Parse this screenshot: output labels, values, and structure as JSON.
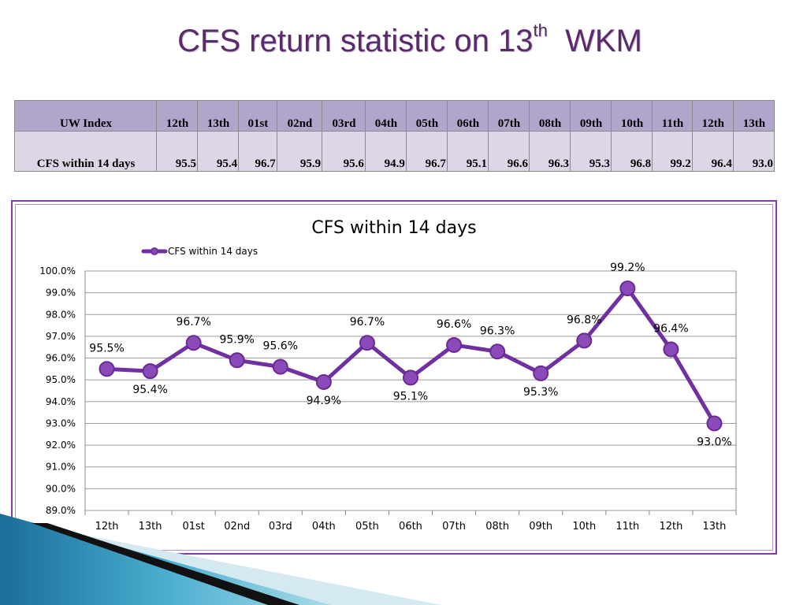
{
  "slide": {
    "title_main": "CFS return statistic on 13",
    "title_sup": "th",
    "title_end": "WKM"
  },
  "table": {
    "header_label": "UW Index",
    "columns": [
      "12th",
      "13th",
      "01st",
      "02nd",
      "03rd",
      "04th",
      "05th",
      "06th",
      "07th",
      "08th",
      "09th",
      "10th",
      "11th",
      "12th",
      "13th"
    ],
    "row_label": "CFS within 14 days",
    "values": [
      "95.5",
      "95.4",
      "96.7",
      "95.9",
      "95.6",
      "94.9",
      "96.7",
      "95.1",
      "96.6",
      "96.3",
      "95.3",
      "96.8",
      "99.2",
      "96.4",
      "93.0"
    ]
  },
  "chart_data": {
    "type": "line",
    "title": "CFS within 14 days",
    "xlabel": "",
    "ylabel": "",
    "categories": [
      "12th",
      "13th",
      "01st",
      "02nd",
      "03rd",
      "04th",
      "05th",
      "06th",
      "07th",
      "08th",
      "09th",
      "10th",
      "11th",
      "12th",
      "13th"
    ],
    "series": [
      {
        "name": "CFS within 14 days",
        "values": [
          95.5,
          95.4,
          96.7,
          95.9,
          95.6,
          94.9,
          96.7,
          95.1,
          96.6,
          96.3,
          95.3,
          96.8,
          99.2,
          96.4,
          93.0
        ],
        "labels": [
          "95.5%",
          "95.4%",
          "96.7%",
          "95.9%",
          "95.6%",
          "94.9%",
          "96.7%",
          "95.1%",
          "96.6%",
          "96.3%",
          "95.3%",
          "96.8%",
          "99.2%",
          "96.4%",
          "93.0%"
        ],
        "color": "#7030a0"
      }
    ],
    "yticks": [
      "89.0%",
      "90.0%",
      "91.0%",
      "92.0%",
      "93.0%",
      "94.0%",
      "95.0%",
      "96.0%",
      "97.0%",
      "98.0%",
      "99.0%",
      "100.0%"
    ],
    "ylim": [
      89,
      100
    ],
    "grid": true,
    "legend": "top-left"
  },
  "colors": {
    "accent": "#7030a0",
    "frame": "#7d3fa2",
    "table_header": "#b2a5cb",
    "table_row": "#ddd6e6"
  }
}
